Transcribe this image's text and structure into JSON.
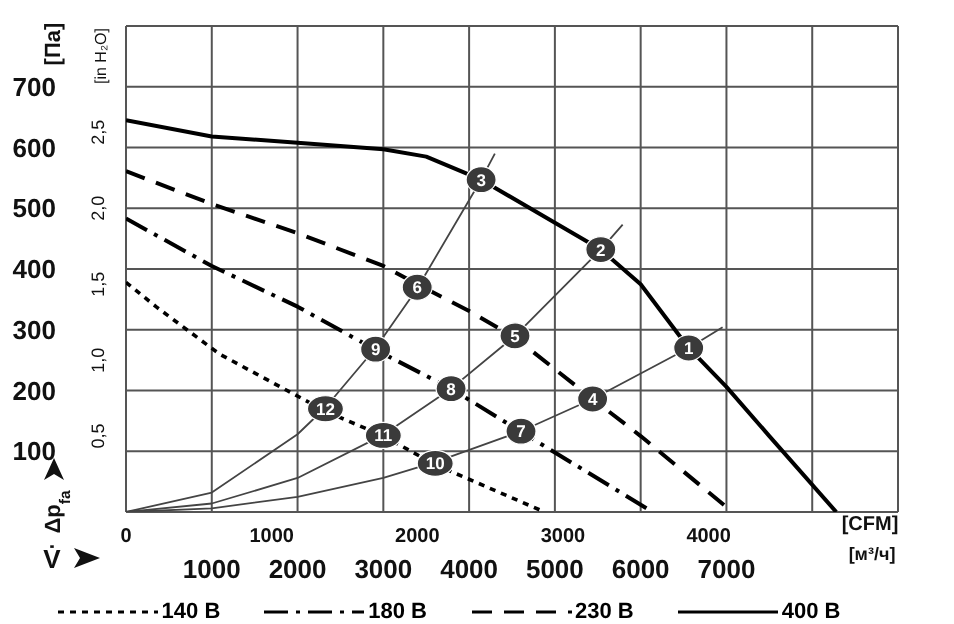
{
  "chart_data": {
    "type": "line",
    "xlabel": "[м³/ч]",
    "x2label": "[CFM]",
    "ylabel": "[Па]",
    "y2label": "[in H₂O]",
    "xlim": [
      0,
      9000
    ],
    "xticks": [
      1000,
      2000,
      3000,
      4000,
      5000,
      6000,
      7000,
      {
        "value": 8000,
        "label": null
      }
    ],
    "x2lim": [
      0,
      5300
    ],
    "x2ticks": [
      0,
      1000,
      2000,
      3000,
      4000
    ],
    "ylim": [
      0,
      800
    ],
    "yticks": [
      100,
      200,
      300,
      400,
      500,
      600,
      700
    ],
    "y2lim": [
      0,
      3.2
    ],
    "y2ticks": [
      {
        "value": 0.5,
        "label": "0,5"
      },
      {
        "value": 1,
        "label": "1,0"
      },
      {
        "value": 1.5,
        "label": "1,5"
      },
      {
        "value": 2,
        "label": "2,0"
      },
      {
        "value": 2.5,
        "label": "2,5"
      }
    ],
    "grid": true,
    "legend": "bottom",
    "series": [
      {
        "name": "140 В",
        "color": "#000000",
        "line_style": "dotted",
        "x": [
          0,
          350,
          1090,
          2325,
          3000,
          3605,
          4880
        ],
        "values": [
          378,
          338,
          260,
          166,
          125,
          78,
          0
        ]
      },
      {
        "name": "180 В",
        "color": "#000000",
        "line_style": "dashdot",
        "x": [
          0,
          1000,
          2000,
          2910,
          3790,
          4605,
          5000,
          6140
        ],
        "values": [
          483,
          405,
          338,
          267,
          203,
          132,
          98,
          0
        ]
      },
      {
        "name": "230 В",
        "color": "#000000",
        "line_style": "dashed",
        "x": [
          0,
          1000,
          2000,
          3000,
          3395,
          4000,
          4535,
          5440,
          6000,
          7070
        ],
        "values": [
          561,
          507,
          459,
          405,
          375,
          331,
          287,
          186,
          125,
          0
        ]
      },
      {
        "name": "400 В",
        "color": "#000000",
        "line_style": "solid",
        "x": [
          0,
          1000,
          2000,
          3000,
          3500,
          4140,
          5000,
          5535,
          6000,
          6560,
          7000,
          7500,
          8280
        ],
        "values": [
          645,
          618,
          608,
          597,
          585,
          547,
          476,
          432,
          375,
          270,
          206,
          125,
          0
        ]
      },
      {
        "color": "#444444",
        "line_style": "solid",
        "x": [
          0,
          1000,
          2000,
          2325,
          2910,
          3395,
          4140,
          4300
        ],
        "values": [
          0,
          32,
          128,
          172,
          270,
          368,
          547,
          590
        ]
      },
      {
        "color": "#444444",
        "line_style": "solid",
        "x": [
          0,
          1000,
          2000,
          3000,
          3790,
          4535,
          5535,
          5790
        ],
        "values": [
          0,
          14,
          56,
          127,
          203,
          290,
          432,
          473
        ]
      },
      {
        "color": "#444444",
        "line_style": "solid",
        "x": [
          0,
          1000,
          2000,
          3000,
          3605,
          4605,
          5440,
          6560,
          6955
        ],
        "values": [
          0,
          6,
          25,
          56,
          82,
          133,
          186,
          270,
          304
        ]
      }
    ],
    "annotations": [
      "Δp$_{fa}$",
      "V̇",
      {
        "text": "1",
        "x": 6560,
        "y": 270
      },
      {
        "text": "2",
        "x": 5535,
        "y": 432
      },
      {
        "text": "3",
        "x": 4140,
        "y": 547
      },
      {
        "text": "4",
        "x": 5440,
        "y": 186
      },
      {
        "text": "5",
        "x": 4535,
        "y": 290
      },
      {
        "text": "6",
        "x": 3395,
        "y": 370
      },
      {
        "text": "7",
        "x": 4605,
        "y": 133
      },
      {
        "text": "8",
        "x": 3790,
        "y": 203
      },
      {
        "text": "9",
        "x": 2910,
        "y": 268
      },
      {
        "text": "10",
        "x": 3605,
        "y": 80
      },
      {
        "text": "11",
        "x": 3000,
        "y": 126
      },
      {
        "text": "12",
        "x": 2325,
        "y": 170
      }
    ]
  }
}
